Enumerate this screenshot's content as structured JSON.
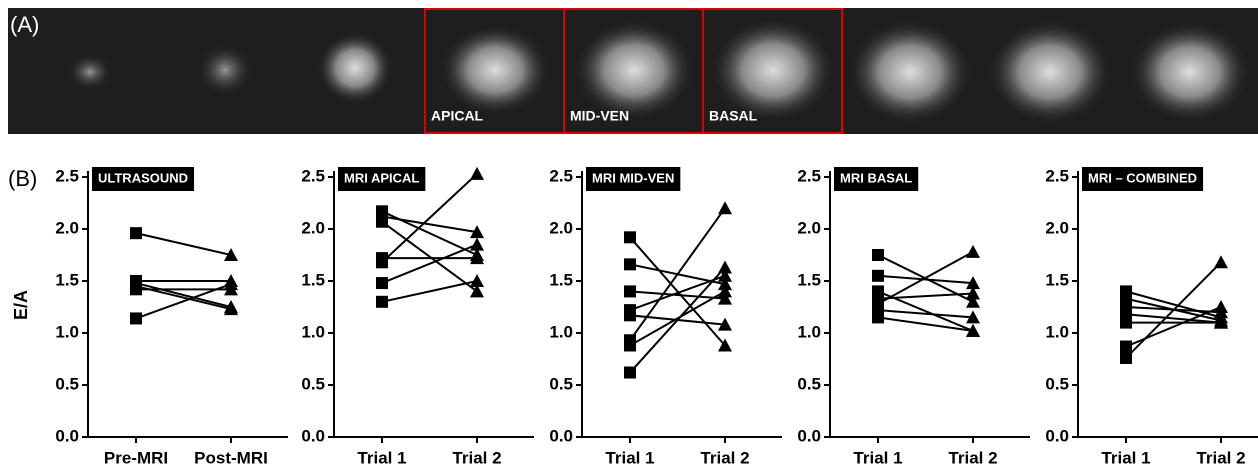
{
  "panel_a": {
    "label": "(A)",
    "slices": [
      "APICAL",
      "MID-VEN",
      "BASAL"
    ]
  },
  "panel_b_label": "(B)",
  "y_label": "E/A",
  "chart_data": [
    {
      "type": "line",
      "title": "ULTRASOUND",
      "categories": [
        "Pre-MRI",
        "Post-MRI"
      ],
      "markers": [
        "square",
        "triangle"
      ],
      "color": "#000000",
      "ylim": [
        0,
        2.5
      ],
      "yticks": [
        {
          "value": 0,
          "label": "0.0"
        },
        0.5,
        {
          "value": 1,
          "label": "1.0"
        },
        1.5,
        {
          "value": 2,
          "label": "2.0"
        },
        2.5
      ],
      "series": [
        {
          "values": [
            1.96,
            1.75
          ]
        },
        {
          "values": [
            1.5,
            1.5
          ]
        },
        {
          "values": [
            1.48,
            1.25
          ]
        },
        {
          "values": [
            1.42,
            1.42
          ]
        },
        {
          "values": [
            1.14,
            1.47
          ]
        },
        {
          "values": [
            1.45,
            1.23
          ]
        }
      ]
    },
    {
      "type": "line",
      "title": "MRI APICAL",
      "categories": [
        "Trial 1",
        "Trial 2"
      ],
      "markers": [
        "square",
        "triangle"
      ],
      "color": "#000000",
      "ylim": [
        0,
        2.5
      ],
      "yticks": [
        {
          "value": 0,
          "label": "0.0"
        },
        0.5,
        {
          "value": 1,
          "label": "1.0"
        },
        1.5,
        {
          "value": 2,
          "label": "2.0"
        },
        2.5
      ],
      "series": [
        {
          "values": [
            2.17,
            1.75
          ]
        },
        {
          "values": [
            2.12,
            1.97
          ]
        },
        {
          "values": [
            2.07,
            1.4
          ]
        },
        {
          "values": [
            1.72,
            1.72
          ]
        },
        {
          "values": [
            1.68,
            2.53
          ]
        },
        {
          "values": [
            1.48,
            1.85
          ]
        },
        {
          "values": [
            1.3,
            1.5
          ]
        }
      ]
    },
    {
      "type": "line",
      "title": "MRI MID-VEN",
      "categories": [
        "Trial 1",
        "Trial 2"
      ],
      "markers": [
        "square",
        "triangle"
      ],
      "color": "#000000",
      "ylim": [
        0,
        2.5
      ],
      "yticks": [
        {
          "value": 0,
          "label": "0.0"
        },
        0.5,
        {
          "value": 1,
          "label": "1.0"
        },
        1.5,
        {
          "value": 2,
          "label": "2.0"
        },
        2.5
      ],
      "series": [
        {
          "values": [
            1.92,
            0.88
          ]
        },
        {
          "values": [
            1.66,
            1.47
          ]
        },
        {
          "values": [
            1.4,
            1.33
          ]
        },
        {
          "values": [
            1.22,
            1.55
          ]
        },
        {
          "values": [
            1.17,
            1.08
          ]
        },
        {
          "values": [
            0.93,
            2.2
          ]
        },
        {
          "values": [
            0.88,
            1.4
          ]
        },
        {
          "values": [
            0.62,
            1.63
          ]
        }
      ]
    },
    {
      "type": "line",
      "title": "MRI BASAL",
      "categories": [
        "Trial 1",
        "Trial 2"
      ],
      "markers": [
        "square",
        "triangle"
      ],
      "color": "#000000",
      "ylim": [
        0,
        2.5
      ],
      "yticks": [
        {
          "value": 0,
          "label": "0.0"
        },
        0.5,
        {
          "value": 1,
          "label": "1.0"
        },
        1.5,
        {
          "value": 2,
          "label": "2.0"
        },
        2.5
      ],
      "series": [
        {
          "values": [
            1.75,
            1.3
          ]
        },
        {
          "values": [
            1.55,
            1.48
          ]
        },
        {
          "values": [
            1.4,
            1.02
          ]
        },
        {
          "values": [
            1.33,
            1.38
          ]
        },
        {
          "values": [
            1.28,
            1.78
          ]
        },
        {
          "values": [
            1.22,
            1.15
          ]
        },
        {
          "values": [
            1.15,
            1.02
          ]
        }
      ]
    },
    {
      "type": "line",
      "title": "MRI – COMBINED",
      "categories": [
        "Trial 1",
        "Trial 2"
      ],
      "markers": [
        "square",
        "triangle"
      ],
      "color": "#000000",
      "ylim": [
        0,
        2.5
      ],
      "yticks": [
        {
          "value": 0,
          "label": "0.0"
        },
        0.5,
        {
          "value": 1,
          "label": "1.0"
        },
        1.5,
        {
          "value": 2,
          "label": "2.0"
        },
        2.5
      ],
      "series": [
        {
          "values": [
            1.4,
            1.15
          ]
        },
        {
          "values": [
            1.33,
            1.12
          ]
        },
        {
          "values": [
            1.25,
            1.2
          ]
        },
        {
          "values": [
            1.18,
            1.1
          ]
        },
        {
          "values": [
            1.1,
            1.1
          ]
        },
        {
          "values": [
            0.87,
            1.25
          ]
        },
        {
          "values": [
            0.76,
            1.68
          ]
        }
      ]
    }
  ]
}
